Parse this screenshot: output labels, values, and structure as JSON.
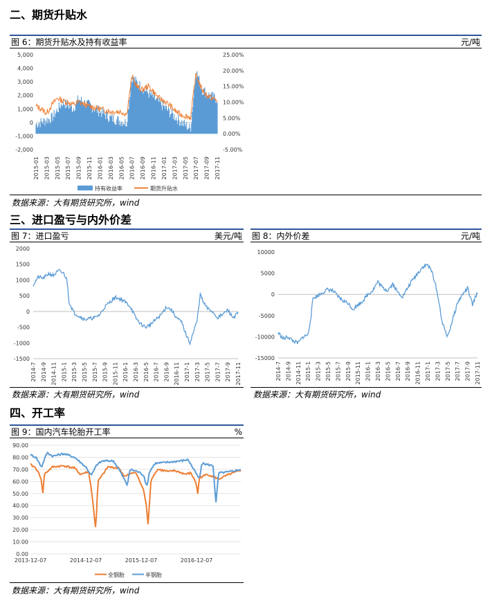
{
  "sections": {
    "s2": "二、期货升贴水",
    "s3": "三、进口盈亏与内外价差",
    "s4": "四、开工率"
  },
  "source": "数据来源：大有期货研究所，wind",
  "charts": {
    "fig6": {
      "title": "图 6：期货升贴水及持有收益率",
      "unit": "元/吨"
    },
    "fig7": {
      "title": "图 7：进口盈亏",
      "unit": "美元/吨"
    },
    "fig8": {
      "title": "图 8：内外价差",
      "unit": "元/吨"
    },
    "fig9": {
      "title": "图 9：国内汽车轮胎开工率",
      "unit": "%"
    }
  },
  "colors": {
    "blue": "#5b9bd5",
    "orange": "#ed7d31"
  },
  "chart_data": [
    {
      "id": "fig6",
      "type": "bar+line",
      "x": [
        "2015-01",
        "2015-03",
        "2015-05",
        "2015-07",
        "2015-09",
        "2015-11",
        "2016-01",
        "2016-03",
        "2016-05",
        "2016-07",
        "2016-09",
        "2016-11",
        "2017-01",
        "2017-03",
        "2017-05",
        "2017-07",
        "2017-09",
        "2017-11"
      ],
      "yticks_left": [
        "5,000",
        "4,000",
        "3,000",
        "2,000",
        "1,000",
        "0",
        "-1,000",
        "-2,000"
      ],
      "yticks_right": [
        "25.00%",
        "20.00%",
        "15.00%",
        "10.00%",
        "5.00%",
        "0.00%",
        "-5.00%"
      ],
      "ylim_left": [
        -2000,
        5000
      ],
      "ylim_right": [
        -5,
        25
      ],
      "series": [
        {
          "name": "持有收益率",
          "axis": "right",
          "kind": "bar",
          "points": [
            [
              0,
              3
            ],
            [
              1.5,
              5
            ],
            [
              2.5,
              10
            ],
            [
              3.5,
              8
            ],
            [
              4,
              11
            ],
            [
              5,
              9
            ],
            [
              6,
              7
            ],
            [
              7,
              5
            ],
            [
              8.5,
              3.5
            ],
            [
              9,
              18
            ],
            [
              9.5,
              16
            ],
            [
              10.5,
              13
            ],
            [
              11.5,
              10
            ],
            [
              12.5,
              7
            ],
            [
              13.5,
              4
            ],
            [
              14.5,
              1.5
            ],
            [
              15,
              20
            ],
            [
              15.6,
              14
            ],
            [
              16.3,
              12
            ],
            [
              17,
              11
            ]
          ]
        },
        {
          "name": "期货升贴水",
          "axis": "left",
          "kind": "line",
          "points": [
            [
              0,
              1200
            ],
            [
              0.5,
              1000
            ],
            [
              1,
              700
            ],
            [
              1.5,
              1300
            ],
            [
              2,
              1800
            ],
            [
              2.5,
              1600
            ],
            [
              3,
              1500
            ],
            [
              3.5,
              1300
            ],
            [
              4,
              1500
            ],
            [
              5,
              1200
            ],
            [
              6,
              1000
            ],
            [
              7,
              800
            ],
            [
              8,
              800
            ],
            [
              8.5,
              600
            ],
            [
              9,
              3400
            ],
            [
              9.5,
              2600
            ],
            [
              10,
              2400
            ],
            [
              10.5,
              2700
            ],
            [
              11,
              2300
            ],
            [
              11.5,
              1800
            ],
            [
              12,
              1600
            ],
            [
              12.5,
              1300
            ],
            [
              13,
              900
            ],
            [
              13.5,
              600
            ],
            [
              14,
              500
            ],
            [
              14.5,
              350
            ],
            [
              15,
              3600
            ],
            [
              15.5,
              2500
            ],
            [
              16,
              2000
            ],
            [
              16.5,
              1800
            ],
            [
              17,
              1600
            ]
          ]
        }
      ]
    },
    {
      "id": "fig7",
      "type": "line",
      "x": [
        "2014-7",
        "2014-9",
        "2014-11",
        "2015-1",
        "2015-3",
        "2015-5",
        "2015-7",
        "2015-9",
        "2015-11",
        "2016-1",
        "2016-3",
        "2016-5",
        "2016-7",
        "2016-9",
        "2016-11",
        "2017-1",
        "2017-3",
        "2017-5",
        "2017-7",
        "2017-9",
        "2017-11"
      ],
      "yticks": [
        "2000",
        "1500",
        "1000",
        "500",
        "0",
        "-500",
        "-1000",
        "-1500"
      ],
      "ylim": [
        -1500,
        2000
      ],
      "series": [
        {
          "points": [
            [
              0,
              850
            ],
            [
              0.5,
              1100
            ],
            [
              1,
              1050
            ],
            [
              1.5,
              1200
            ],
            [
              2,
              1150
            ],
            [
              2.5,
              1300
            ],
            [
              3,
              1200
            ],
            [
              3.3,
              1000
            ],
            [
              3.5,
              300
            ],
            [
              4,
              -50
            ],
            [
              4.5,
              -150
            ],
            [
              5,
              -250
            ],
            [
              6,
              -200
            ],
            [
              6.5,
              -100
            ],
            [
              7,
              150
            ],
            [
              7.5,
              300
            ],
            [
              8,
              450
            ],
            [
              8.5,
              400
            ],
            [
              9,
              300
            ],
            [
              9.5,
              150
            ],
            [
              10,
              -200
            ],
            [
              10.5,
              -400
            ],
            [
              11,
              -500
            ],
            [
              11.5,
              -400
            ],
            [
              12,
              -250
            ],
            [
              12.5,
              -100
            ],
            [
              13,
              150
            ],
            [
              13.5,
              50
            ],
            [
              14,
              -200
            ],
            [
              14.5,
              -350
            ],
            [
              15,
              -800
            ],
            [
              15.3,
              -1000
            ],
            [
              15.6,
              -700
            ],
            [
              16,
              -300
            ],
            [
              16.3,
              550
            ],
            [
              16.6,
              300
            ],
            [
              17,
              100
            ],
            [
              17.5,
              0
            ],
            [
              18,
              -200
            ],
            [
              18.5,
              -100
            ],
            [
              19,
              50
            ],
            [
              19.5,
              -200
            ],
            [
              20,
              -50
            ]
          ]
        }
      ]
    },
    {
      "id": "fig8",
      "type": "line",
      "x": [
        "2014-7",
        "2014-9",
        "2014-11",
        "2015-1",
        "2015-3",
        "2015-5",
        "2015-7",
        "2015-9",
        "2015-11",
        "2016-1",
        "2016-3",
        "2016-5",
        "2016-7",
        "2016-9",
        "2016-11",
        "2017-1",
        "2017-3",
        "2017-5",
        "2017-7",
        "2017-9",
        "2017-11"
      ],
      "yticks": [
        "10000",
        "5000",
        "0",
        "-5000",
        "-10000",
        "-15000"
      ],
      "ylim": [
        -15000,
        10000
      ],
      "series": [
        {
          "points": [
            [
              0,
              -9000
            ],
            [
              0.5,
              -10500
            ],
            [
              1,
              -10000
            ],
            [
              1.5,
              -11000
            ],
            [
              2,
              -11500
            ],
            [
              2.5,
              -10000
            ],
            [
              3,
              -9500
            ],
            [
              3.3,
              -5000
            ],
            [
              3.5,
              -800
            ],
            [
              4,
              -300
            ],
            [
              4.5,
              500
            ],
            [
              5,
              1200
            ],
            [
              5.5,
              800
            ],
            [
              6,
              -500
            ],
            [
              6.5,
              -1500
            ],
            [
              7,
              -2000
            ],
            [
              7.5,
              -3500
            ],
            [
              8,
              -2500
            ],
            [
              8.5,
              -1500
            ],
            [
              9,
              0
            ],
            [
              9.5,
              1000
            ],
            [
              10,
              3000
            ],
            [
              10.5,
              1500
            ],
            [
              11,
              1000
            ],
            [
              11.5,
              2500
            ],
            [
              12,
              500
            ],
            [
              12.5,
              -500
            ],
            [
              13,
              1500
            ],
            [
              13.5,
              3500
            ],
            [
              14,
              5000
            ],
            [
              14.5,
              6500
            ],
            [
              15,
              7000
            ],
            [
              15.5,
              5000
            ],
            [
              16,
              0
            ],
            [
              16.5,
              -7000
            ],
            [
              17,
              -10000
            ],
            [
              17.5,
              -6000
            ],
            [
              18,
              -2000
            ],
            [
              18.5,
              0
            ],
            [
              19,
              1500
            ],
            [
              19.5,
              -2500
            ],
            [
              20,
              500
            ]
          ]
        }
      ]
    },
    {
      "id": "fig9",
      "type": "line",
      "x": [
        "2013-12-07",
        "2014-12-07",
        "2015-12-07",
        "2016-12-07"
      ],
      "yticks": [
        "90.00",
        "80.00",
        "70.00",
        "60.00",
        "50.00",
        "40.00",
        "30.00",
        "20.00",
        "10.00",
        "0.00"
      ],
      "ylim": [
        0,
        90
      ],
      "series": [
        {
          "name": "全钢胎",
          "points": [
            [
              0,
              74
            ],
            [
              0.1,
              71
            ],
            [
              0.2,
              62
            ],
            [
              0.22,
              47
            ],
            [
              0.25,
              66
            ],
            [
              0.4,
              72
            ],
            [
              0.6,
              73
            ],
            [
              0.8,
              71
            ],
            [
              0.9,
              66
            ],
            [
              1.05,
              68
            ],
            [
              1.1,
              54
            ],
            [
              1.15,
              33
            ],
            [
              1.18,
              20
            ],
            [
              1.22,
              60
            ],
            [
              1.4,
              72
            ],
            [
              1.6,
              71
            ],
            [
              1.7,
              64
            ],
            [
              1.9,
              68
            ],
            [
              2.05,
              52
            ],
            [
              2.1,
              38
            ],
            [
              2.12,
              22
            ],
            [
              2.18,
              62
            ],
            [
              2.3,
              70
            ],
            [
              2.5,
              68
            ],
            [
              2.6,
              69
            ],
            [
              2.8,
              66
            ],
            [
              2.9,
              67
            ],
            [
              3.0,
              58
            ],
            [
              3.02,
              48
            ],
            [
              3.05,
              63
            ],
            [
              3.2,
              66
            ],
            [
              3.4,
              62
            ],
            [
              3.6,
              66
            ],
            [
              3.8,
              69
            ]
          ]
        },
        {
          "name": "半钢胎",
          "points": [
            [
              0,
              82
            ],
            [
              0.1,
              80
            ],
            [
              0.2,
              72
            ],
            [
              0.3,
              84
            ],
            [
              0.4,
              81
            ],
            [
              0.6,
              83
            ],
            [
              0.8,
              80
            ],
            [
              0.9,
              76
            ],
            [
              1.0,
              72
            ],
            [
              1.1,
              65
            ],
            [
              1.2,
              74
            ],
            [
              1.3,
              77
            ],
            [
              1.5,
              77
            ],
            [
              1.6,
              70
            ],
            [
              1.75,
              57
            ],
            [
              1.8,
              70
            ],
            [
              1.95,
              68
            ],
            [
              2.05,
              65
            ],
            [
              2.1,
              55
            ],
            [
              2.15,
              68
            ],
            [
              2.25,
              75
            ],
            [
              2.5,
              76
            ],
            [
              2.7,
              77
            ],
            [
              2.85,
              78
            ],
            [
              2.95,
              70
            ],
            [
              3.05,
              62
            ],
            [
              3.1,
              75
            ],
            [
              3.3,
              73
            ],
            [
              3.35,
              42
            ],
            [
              3.4,
              67
            ],
            [
              3.6,
              68
            ],
            [
              3.8,
              70
            ]
          ]
        }
      ]
    }
  ]
}
